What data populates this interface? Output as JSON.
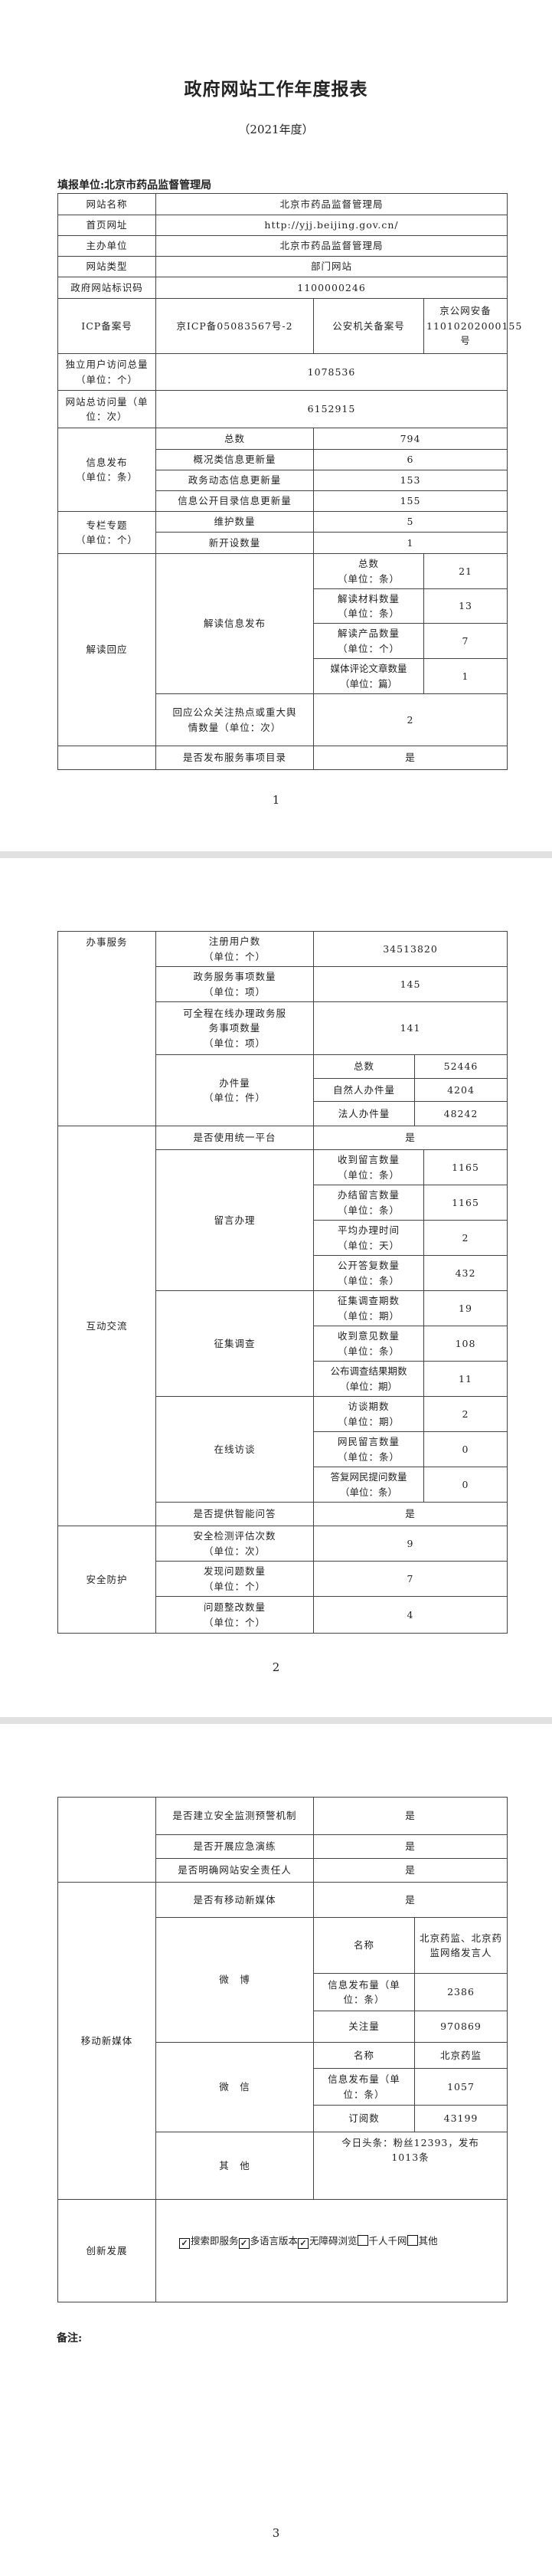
{
  "header": {
    "title": "政府网站工作年度报表",
    "year": "（2021年度）",
    "filler": "填报单位:北京市药品监督管理局"
  },
  "p1": {
    "site_name": {
      "label": "网站名称",
      "value": "北京市药品监督管理局"
    },
    "homepage": {
      "label": "首页网址",
      "value": "http://yjj.beijing.gov.cn/"
    },
    "sponsor": {
      "label": "主办单位",
      "value": "北京市药品监督管理局"
    },
    "site_type": {
      "label": "网站类型",
      "value": "部门网站"
    },
    "site_code": {
      "label": "政府网站标识码",
      "value": "1100000246"
    },
    "icp": {
      "label": "ICP备案号",
      "value": "京ICP备05083567号-2",
      "police_label": "公安机关备案号",
      "police_value": "京公网安备11010202000155号"
    },
    "unique_visitors": {
      "label": "独立用户访问总量（单位：个）",
      "value": "1078536"
    },
    "total_visits": {
      "label": "网站总访问量（单位：次）",
      "value": "6152915"
    },
    "info_publish": {
      "label": "信息发布",
      "unit": "（单位：条）",
      "rows": [
        {
          "label": "总数",
          "value": "794"
        },
        {
          "label": "概况类信息更新量",
          "value": "6"
        },
        {
          "label": "政务动态信息更新量",
          "value": "153"
        },
        {
          "label": "信息公开目录信息更新量",
          "value": "155"
        }
      ]
    },
    "columns": {
      "label": "专栏专题",
      "unit": "（单位：个）",
      "rows": [
        {
          "label": "维护数量",
          "value": "5"
        },
        {
          "label": "新开设数量",
          "value": "1"
        }
      ]
    },
    "interpret": {
      "label": "解读回应",
      "sub_label": "解读信息发布",
      "rows": [
        {
          "label": "总数",
          "unit": "（单位：条）",
          "value": "21"
        },
        {
          "label": "解读材料数量",
          "unit": "（单位：条）",
          "value": "13"
        },
        {
          "label": "解读产品数量",
          "unit": "（单位：个）",
          "value": "7"
        },
        {
          "label": "媒体评论文章数量",
          "unit": "（单位：篇）",
          "value": "1"
        }
      ],
      "hotspot": {
        "label": "回应公众关注热点或重大舆情数量（单位：次）",
        "value": "2"
      }
    },
    "service_catalog": {
      "label": "是否发布服务事项目录",
      "value": "是"
    },
    "page_number": "1"
  },
  "p2": {
    "service": {
      "label": "办事服务",
      "rows": [
        {
          "label": "注册用户数",
          "unit": "（单位：个）",
          "value": "34513820"
        },
        {
          "label": "政务服务事项数量",
          "unit": "（单位：项）",
          "value": "145"
        },
        {
          "label": "可全程在线办理政务服务事项数量",
          "unit": "（单位：项）",
          "value": "141"
        }
      ],
      "cases": {
        "label": "办件量",
        "unit": "（单位：件）",
        "rows": [
          {
            "label": "总数",
            "value": "52446"
          },
          {
            "label": "自然人办件量",
            "value": "4204"
          },
          {
            "label": "法人办件量",
            "value": "48242"
          }
        ]
      }
    },
    "interaction": {
      "label": "互动交流",
      "unified_platform": {
        "label": "是否使用统一平台",
        "value": "是"
      },
      "messages": {
        "label": "留言办理",
        "rows": [
          {
            "label": "收到留言数量",
            "unit": "（单位：条）",
            "value": "1165"
          },
          {
            "label": "办结留言数量",
            "unit": "（单位：条）",
            "value": "1165"
          },
          {
            "label": "平均办理时间",
            "unit": "（单位：天）",
            "value": "2"
          },
          {
            "label": "公开答复数量",
            "unit": "（单位：条）",
            "value": "432"
          }
        ]
      },
      "survey": {
        "label": "征集调查",
        "rows": [
          {
            "label": "征集调查期数",
            "unit": "（单位：期）",
            "value": "19"
          },
          {
            "label": "收到意见数量",
            "unit": "（单位：条）",
            "value": "108"
          },
          {
            "label": "公布调查结果期数",
            "unit": "（单位：期）",
            "value": "11"
          }
        ]
      },
      "interview": {
        "label": "在线访谈",
        "rows": [
          {
            "label": "访谈期数",
            "unit": "（单位：期）",
            "value": "2"
          },
          {
            "label": "网民留言数量",
            "unit": "（单位：条）",
            "value": "0"
          },
          {
            "label": "答复网民提问数量",
            "unit": "（单位：条）",
            "value": "0"
          }
        ]
      },
      "smart_qa": {
        "label": "是否提供智能问答",
        "value": "是"
      }
    },
    "security": {
      "label": "安全防护",
      "rows": [
        {
          "label": "安全检测评估次数",
          "unit": "（单位：次）",
          "value": "9"
        },
        {
          "label": "发现问题数量",
          "unit": "（单位：个）",
          "value": "7"
        },
        {
          "label": "问题整改数量",
          "unit": "（单位：个）",
          "value": "4"
        }
      ]
    },
    "page_number": "2"
  },
  "p3": {
    "security_more": [
      {
        "label": "是否建立安全监测预警机制",
        "value": "是"
      },
      {
        "label": "是否开展应急演练",
        "value": "是"
      },
      {
        "label": "是否明确网站安全责任人",
        "value": "是"
      }
    ],
    "mobile": {
      "label": "移动新媒体",
      "has_mobile": {
        "label": "是否有移动新媒体",
        "value": "是"
      },
      "weibo": {
        "label": "微　博",
        "rows": [
          {
            "label": "名称",
            "value": "北京药监、北京药监网络发言人"
          },
          {
            "label": "信息发布量（单位：条）",
            "value": "2386"
          },
          {
            "label": "关注量",
            "value": "970869"
          }
        ]
      },
      "wechat": {
        "label": "微　信",
        "rows": [
          {
            "label": "名称",
            "value": "北京药监"
          },
          {
            "label": "信息发布量（单位：条）",
            "value": "1057"
          },
          {
            "label": "订阅数",
            "value": "43199"
          }
        ]
      },
      "other": {
        "label": "其　他",
        "value": "今日头条：粉丝12393，发布1013条"
      }
    },
    "innovation": {
      "label": "创新发展",
      "options": [
        {
          "label": "搜索即服务",
          "checked": true
        },
        {
          "label": "多语言版本",
          "checked": true
        },
        {
          "label": "无障碍浏览",
          "checked": true
        },
        {
          "label": "千人千网",
          "checked": false
        },
        {
          "label": "其他",
          "checked": false
        }
      ]
    },
    "remark": "备注:",
    "page_number": "3"
  }
}
